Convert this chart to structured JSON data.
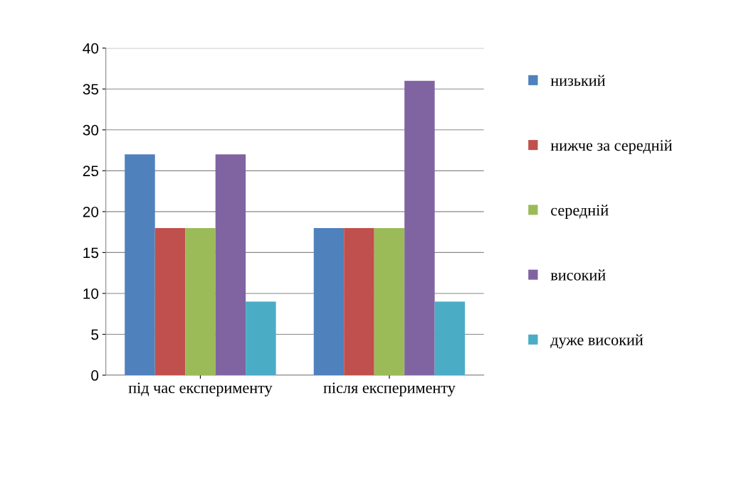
{
  "chart_data": {
    "type": "bar",
    "categories": [
      "під час експерименту",
      "після експерименту"
    ],
    "series": [
      {
        "name": "низький",
        "color": "#4f81bd",
        "values": [
          27,
          18
        ]
      },
      {
        "name": "нижче за середній",
        "color": "#c0504d",
        "values": [
          18,
          18
        ]
      },
      {
        "name": "середній",
        "color": "#9bbb59",
        "values": [
          18,
          18
        ]
      },
      {
        "name": "високий",
        "color": "#8064a2",
        "values": [
          27,
          36
        ]
      },
      {
        "name": "дуже високий",
        "color": "#4bacc6",
        "values": [
          9,
          9
        ]
      }
    ],
    "ylim": [
      0,
      40
    ],
    "yticks": [
      0,
      5,
      10,
      15,
      20,
      25,
      30,
      35,
      40
    ],
    "grid": "y",
    "legend": "right"
  }
}
